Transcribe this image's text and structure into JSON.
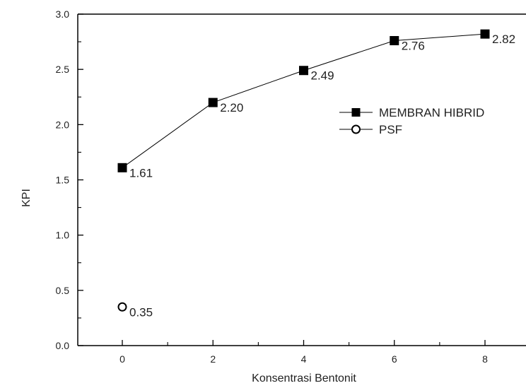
{
  "chart_data": {
    "type": "line",
    "xlabel": "Konsentrasi Bentonit",
    "ylabel": "KPI",
    "xlim": [
      -1,
      9
    ],
    "ylim": [
      0,
      3
    ],
    "x_ticks": [
      0,
      2,
      4,
      6,
      8
    ],
    "x_tick_labels": [
      "0",
      "2",
      "4",
      "6",
      "8"
    ],
    "y_ticks": [
      0,
      0.5,
      1,
      1.5,
      2,
      2.5,
      3
    ],
    "y_tick_labels": [
      "0.0",
      "0.5",
      "1.0",
      "1.5",
      "2.0",
      "2.5",
      "3.0"
    ],
    "grid": false,
    "legend_position": "right",
    "series": [
      {
        "name": "MEMBRAN HIBRID",
        "marker": "filled-square",
        "color": "#000000",
        "x": [
          0,
          2,
          4,
          6,
          8
        ],
        "y": [
          1.61,
          2.2,
          2.49,
          2.76,
          2.82
        ],
        "labels": [
          "1.61",
          "2.20",
          "2.49",
          "2.76",
          "2.82"
        ]
      },
      {
        "name": "PSF",
        "marker": "open-circle",
        "color": "#000000",
        "x": [
          0
        ],
        "y": [
          0.35
        ],
        "labels": [
          "0.35"
        ]
      }
    ]
  }
}
